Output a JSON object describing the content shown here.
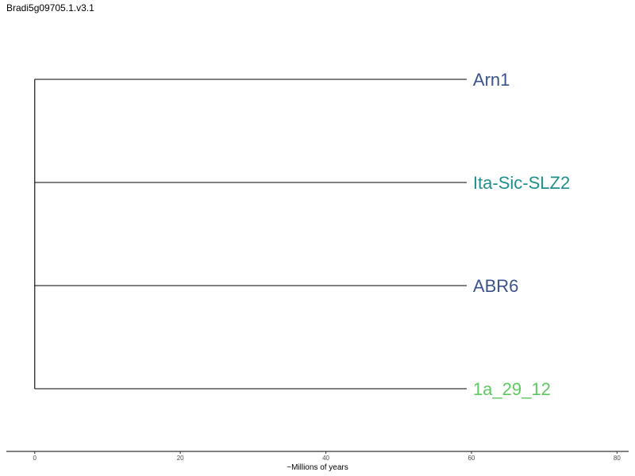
{
  "title": "Bradi5g09705.1.v3.1",
  "chart_data": {
    "type": "tree",
    "title": "Bradi5g09705.1.v3.1",
    "xlabel": "~Millions of years",
    "xlim": [
      -3.9,
      81.6
    ],
    "x_ticks": [
      0,
      20,
      40,
      60,
      80
    ],
    "tips": [
      {
        "label": "Arn1",
        "depth": 60,
        "color": "#3b528b"
      },
      {
        "label": "Ita-Sic-SLZ2",
        "depth": 60,
        "color": "#21908d"
      },
      {
        "label": "ABR6",
        "depth": 60,
        "color": "#3b528b"
      },
      {
        "label": "1a_29_12",
        "depth": 60,
        "color": "#5ec962"
      }
    ],
    "root_depth": 0
  }
}
